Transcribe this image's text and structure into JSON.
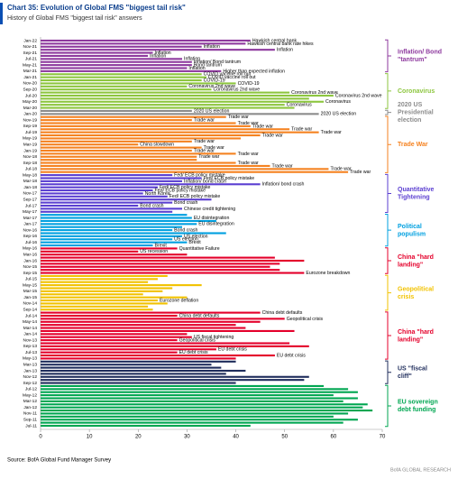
{
  "chart_data": {
    "type": "hbar",
    "title": "Chart 35: Evolution of Global FMS \"biggest tail risk\"",
    "subtitle": "History of Global FMS \"biggest tail risk\" answers",
    "source": "Source: BofA Global Fund Manager Survey",
    "brand": "BofA GLOBAL RESEARCH",
    "xlim": [
      0,
      70
    ],
    "xticks": [
      0,
      10,
      20,
      30,
      40,
      50,
      60,
      70
    ],
    "categories": [
      "Jan-22",
      null,
      "Nov-21",
      null,
      "Sep-21",
      null,
      "Jul-21",
      null,
      "May-21",
      null,
      "Mar-21",
      null,
      "Jan-21",
      null,
      "Nov-20",
      null,
      "Sep-20",
      null,
      "Jul-20",
      null,
      "May-20",
      null,
      "Mar-20",
      null,
      "Jan-20",
      null,
      "Nov-19",
      null,
      "Sep-19",
      null,
      "Jul-19",
      null,
      "May-19",
      null,
      "Mar-19",
      null,
      "Jan-19",
      null,
      "Nov-18",
      null,
      "Sep-18",
      null,
      "Jul-18",
      null,
      "May-18",
      null,
      "Mar-18",
      null,
      "Jan-18",
      null,
      "Nov-17",
      null,
      "Sep-17",
      null,
      "Jul-17",
      null,
      "May-17",
      null,
      "Mar-17",
      null,
      "Jan-17",
      null,
      "Nov-16",
      null,
      "Sep-16",
      null,
      "Jul-16",
      null,
      "May-16",
      null,
      "Mar-16",
      null,
      "Jan-16",
      null,
      "Nov-15",
      null,
      "Sep-15",
      null,
      "Jul-15",
      null,
      "May-15",
      null,
      "Mar-15",
      null,
      "Jan-15",
      null,
      "Nov-14",
      null,
      "Sep-14",
      null,
      "Jul-14",
      null,
      "May-14",
      null,
      "Mar-14",
      null,
      "Jan-14",
      null,
      "Nov-13",
      null,
      "Sep-13",
      null,
      "Jul-13",
      null,
      "May-13",
      null,
      "Mar-13",
      null,
      "Jan-13",
      null,
      "Nov-12",
      null,
      "Sep-12",
      null,
      "Jul-12",
      null,
      "May-12",
      null,
      "Mar-12",
      null,
      "Jan-12",
      null,
      "Nov-11",
      null,
      "Sep-11",
      null,
      "Jul-11"
    ],
    "values": [
      43,
      42,
      33,
      48,
      23,
      22,
      29,
      31,
      31,
      30,
      37,
      33,
      34,
      33,
      40,
      30,
      35,
      51,
      60,
      55,
      58,
      50,
      52,
      31,
      57,
      38,
      31,
      40,
      43,
      51,
      57,
      45,
      41,
      31,
      20,
      33,
      31,
      40,
      32,
      32,
      40,
      47,
      59,
      63,
      27,
      33,
      29,
      45,
      24,
      23,
      21,
      26,
      35,
      27,
      20,
      29,
      27,
      30,
      31,
      36,
      32,
      29,
      27,
      38,
      29,
      27,
      30,
      23,
      28,
      20,
      30,
      48,
      54,
      49,
      47,
      49,
      54,
      26,
      24,
      22,
      33,
      27,
      25,
      21,
      30,
      24,
      26,
      22,
      23,
      45,
      28,
      50,
      45,
      40,
      42,
      52,
      30,
      31,
      28,
      51,
      55,
      36,
      28,
      48,
      40,
      40,
      35,
      37,
      42,
      38,
      55,
      54,
      40,
      58,
      63,
      65,
      60,
      65,
      62,
      67,
      66,
      68,
      63,
      60,
      65,
      62,
      43
    ],
    "bar_labels": [
      "Hawkish central bank",
      "Hawkish central bank rate hikes",
      "Inflation",
      "Inflation",
      "Inflation",
      "Inflation",
      "Inflation",
      "Inflation/ Bond tantrum",
      "Bond tantrum",
      "Inflation",
      "Higher than expected inflation",
      "COVID vaccine roll out",
      "COVID vaccine roll out",
      "COVID-19",
      "COVID-19",
      "Coronavirus 2nd wave",
      "Coronavirus 2nd wave",
      "Coronavirus 2nd wave",
      "Coronavirus 2nd wave",
      null,
      "Coronavirus",
      "Coronavirus",
      null,
      "2020 US election",
      "2020 US election",
      "Trade war",
      "Trade war",
      "Trade war",
      "Trade war",
      "Trade war",
      "Trade war",
      "Trade war",
      null,
      "Trade war",
      "China slowdown",
      "Trade war",
      "Trade war",
      "Trade war",
      "Trade war",
      null,
      "Trade war",
      "Trade war",
      "Trade war",
      "Trade war",
      "Fed/ ECB policy mistake",
      "Fed/ ECB policy mistake",
      "Inflation/ bond crash",
      "Inflation/ bond crash",
      "Fed/ ECB policy mistake",
      "Fed/ ECB policy mistake",
      "North Korea",
      "Fed/ ECB policy mistake",
      null,
      "Bond crash",
      "Bond crash",
      "Chinese credit tightening",
      null,
      null,
      "EU disintegration",
      null,
      "EU disintegration",
      null,
      "Bond crash",
      null,
      "US election",
      "US election",
      "Brexit",
      "Brexit",
      "Quantitative Failure",
      "US recession",
      null,
      null,
      null,
      null,
      null,
      null,
      "Eurozone breakdown",
      null,
      null,
      null,
      null,
      null,
      null,
      null,
      null,
      "Eurozone deflation",
      null,
      null,
      null,
      "China debt defaults",
      "China debt defaults",
      "Geopolitical crisis",
      null,
      null,
      null,
      null,
      null,
      "US fiscal tightening",
      "Geopolitical crisis",
      null,
      null,
      "EU debt crisis",
      "EU debt crisis",
      "EU debt crisis",
      null,
      null,
      null,
      null,
      null,
      null,
      null,
      null,
      null,
      null,
      null,
      null,
      null,
      null,
      null,
      null,
      null,
      null,
      null,
      null,
      null,
      null,
      null
    ],
    "colors": [
      "#8e3a9e",
      "#8e3a9e",
      "#8e3a9e",
      "#8e3a9e",
      "#8e3a9e",
      "#8e3a9e",
      "#8e3a9e",
      "#8e3a9e",
      "#8e3a9e",
      "#8e3a9e",
      "#8e3a9e",
      "#8dc63f",
      "#8dc63f",
      "#8dc63f",
      "#8dc63f",
      "#8dc63f",
      "#8dc63f",
      "#8dc63f",
      "#8dc63f",
      "#8dc63f",
      "#8dc63f",
      "#8dc63f",
      "#8dc63f",
      "#8c8c8c",
      "#8c8c8c",
      "#f58220",
      "#f58220",
      "#f58220",
      "#f58220",
      "#f58220",
      "#f58220",
      "#f58220",
      "#f58220",
      "#f58220",
      "#f58220",
      "#f58220",
      "#f58220",
      "#f58220",
      "#f58220",
      "#f58220",
      "#f58220",
      "#f58220",
      "#f58220",
      "#f58220",
      "#5b3fd1",
      "#5b3fd1",
      "#5b3fd1",
      "#5b3fd1",
      "#5b3fd1",
      "#5b3fd1",
      "#5b3fd1",
      "#5b3fd1",
      "#5b3fd1",
      "#5b3fd1",
      "#5b3fd1",
      "#5b3fd1",
      "#5b3fd1",
      "#00a0e0",
      "#00a0e0",
      "#00a0e0",
      "#00a0e0",
      "#00a0e0",
      "#00a0e0",
      "#00a0e0",
      "#00a0e0",
      "#00a0e0",
      "#00a0e0",
      "#00a0e0",
      "#e4002b",
      "#e4002b",
      "#e4002b",
      "#e4002b",
      "#e4002b",
      "#e4002b",
      "#e4002b",
      "#e4002b",
      "#e4002b",
      "#f2c200",
      "#f2c200",
      "#f2c200",
      "#f2c200",
      "#f2c200",
      "#f2c200",
      "#f2c200",
      "#f2c200",
      "#f2c200",
      "#f2c200",
      "#f2c200",
      "#f2c200",
      "#e4002b",
      "#e4002b",
      "#e4002b",
      "#e4002b",
      "#e4002b",
      "#e4002b",
      "#e4002b",
      "#e4002b",
      "#e4002b",
      "#e4002b",
      "#e4002b",
      "#e4002b",
      "#e4002b",
      "#e4002b",
      "#e4002b",
      "#e4002b",
      "#1f2d5c",
      "#1f2d5c",
      "#1f2d5c",
      "#1f2d5c",
      "#1f2d5c",
      "#1f2d5c",
      "#1f2d5c",
      "#1f2d5c",
      "#00a651",
      "#00a651",
      "#00a651",
      "#00a651",
      "#00a651",
      "#00a651",
      "#00a651",
      "#00a651",
      "#00a651",
      "#00a651",
      "#00a651",
      "#00a651",
      "#00a651",
      "#00a651"
    ],
    "groups": [
      {
        "name": "Inflation/ Bond \"tantrum\"",
        "color": "#8e3a9e"
      },
      {
        "name": "Coronavirus",
        "color": "#8dc63f"
      },
      {
        "name": "2020 US Presidential election",
        "color": "#8c8c8c"
      },
      {
        "name": "Trade War",
        "color": "#f58220"
      },
      {
        "name": "Quantitative Tightening",
        "color": "#5b3fd1"
      },
      {
        "name": "Political populism",
        "color": "#00a0e0"
      },
      {
        "name": "China \"hard landing\"",
        "color": "#e4002b"
      },
      {
        "name": "Geopolitical crisis",
        "color": "#f2c200"
      },
      {
        "name": "China \"hard landing\"",
        "color": "#e4002b"
      },
      {
        "name": "US \"fiscal cliff\"",
        "color": "#1f2d5c"
      },
      {
        "name": "EU sovereign debt funding",
        "color": "#00a651"
      }
    ]
  }
}
